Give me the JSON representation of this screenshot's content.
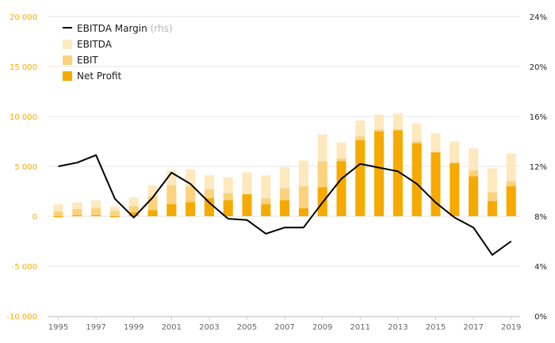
{
  "chart_data": {
    "type": "bar",
    "legend": {
      "position": "top-left",
      "margin_label": "EBITDA Margin",
      "margin_note": "(rhs)",
      "items": [
        "EBITDA",
        "EBIT",
        "Net Profit"
      ]
    },
    "left_axis": {
      "min": -10000,
      "max": 20000,
      "ticks": [
        20000,
        15000,
        10000,
        5000,
        0,
        -5000,
        -10000
      ],
      "tick_labels": [
        "20 000",
        "15 000",
        "10 000",
        "5 000",
        "0",
        "-5 000",
        "-10 000"
      ]
    },
    "right_axis": {
      "min": 0,
      "max": 24,
      "ticks": [
        24,
        20,
        16,
        12,
        8,
        4,
        0
      ],
      "tick_labels": [
        "24%",
        "20%",
        "16%",
        "12%",
        "8%",
        "4%",
        "0%"
      ]
    },
    "x_tick_labels": [
      "1995",
      "1997",
      "1999",
      "2001",
      "2003",
      "2005",
      "2007",
      "2009",
      "2011",
      "2013",
      "2015",
      "2017",
      "2019"
    ],
    "years": [
      1995,
      1996,
      1997,
      1998,
      1999,
      2000,
      2001,
      2002,
      2003,
      2004,
      2005,
      2006,
      2007,
      2008,
      2009,
      2010,
      2011,
      2012,
      2013,
      2014,
      2015,
      2016,
      2017,
      2018,
      2019
    ],
    "series": [
      {
        "name": "EBITDA",
        "values": [
          1200,
          1400,
          1600,
          1000,
          1900,
          3100,
          4600,
          4700,
          4100,
          3900,
          4400,
          4100,
          4900,
          5600,
          8200,
          7400,
          9600,
          10200,
          10300,
          9300,
          8300,
          7500,
          6800,
          4800,
          6300
        ]
      },
      {
        "name": "EBIT",
        "values": [
          500,
          700,
          800,
          500,
          1000,
          2000,
          3100,
          3000,
          2700,
          2300,
          2200,
          1800,
          2800,
          3000,
          5500,
          5800,
          8000,
          8700,
          8700,
          7500,
          6400,
          5400,
          4600,
          2400,
          3500
        ]
      },
      {
        "name": "Net Profit",
        "values": [
          -100,
          100,
          100,
          -100,
          400,
          600,
          1200,
          1400,
          1800,
          1600,
          2200,
          1200,
          1600,
          800,
          2900,
          5500,
          7600,
          8500,
          8600,
          7300,
          6400,
          5300,
          4000,
          1500,
          3000
        ]
      },
      {
        "name": "EBITDA Margin",
        "axis": "right",
        "values": [
          12.0,
          12.3,
          12.9,
          9.4,
          7.9,
          9.5,
          11.5,
          10.6,
          9.1,
          7.8,
          7.7,
          6.6,
          7.1,
          7.1,
          9.1,
          11.0,
          12.2,
          11.9,
          11.6,
          10.6,
          9.1,
          7.9,
          7.1,
          4.9,
          6.0
        ]
      }
    ],
    "colors": {
      "EBITDA": "#fde9bd",
      "EBIT": "#fcd27c",
      "Net Profit": "#f6aa00",
      "EBITDA Margin": "#000000",
      "left_axis_labels": "#f6aa00",
      "gridline": "#e6e6e6"
    },
    "grid": true
  }
}
